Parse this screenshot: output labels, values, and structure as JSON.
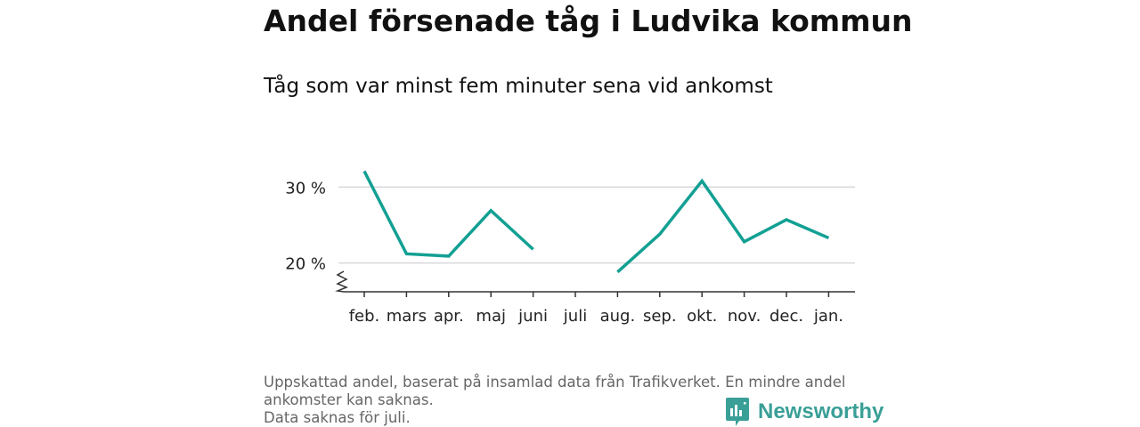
{
  "title": "Andel försenade tåg i Ludvika kommun",
  "subtitle": "Tåg som var minst fem minuter sena vid ankomst",
  "footnote": {
    "line1": "Uppskattad andel, baserat på insamlad data från Trafikverket. En mindre andel",
    "line2": "ankomster kan saknas.",
    "line3": "Data saknas för juli."
  },
  "brand": {
    "name": "Newsworthy",
    "icon": "newsworthy-logo-icon",
    "color": "#3a9f97"
  },
  "chart_data": {
    "type": "line",
    "categories": [
      "feb.",
      "mars",
      "apr.",
      "maj",
      "juni",
      "juli",
      "aug.",
      "sep.",
      "okt.",
      "nov.",
      "dec.",
      "jan."
    ],
    "series": [
      {
        "values": [
          32.1,
          21.2,
          20.9,
          26.9,
          21.8,
          null,
          18.8,
          23.8,
          30.8,
          22.8,
          25.7,
          23.3
        ]
      }
    ],
    "y_ticks": [
      20,
      30
    ],
    "y_tick_labels": [
      "20 %",
      "30 %"
    ],
    "ylim": [
      16.2,
      33.2
    ],
    "axis_break": true,
    "grid": "horizontal",
    "line_color": "#12a093",
    "gridline_color": "#d9d9de",
    "axis_color": "#333333"
  }
}
